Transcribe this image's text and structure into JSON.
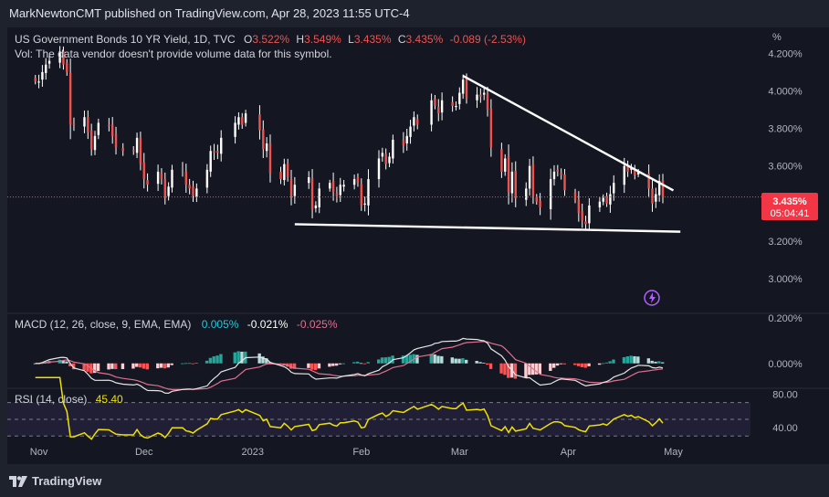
{
  "publisher_line": "MarkNewtonCMT published on TradingView.com, Apr 28, 2023 11:55 UTC-4",
  "brand": "TradingView",
  "legend": {
    "symbol": "US Government Bonds 10 YR Yield, 1D, TVC",
    "o_label": "O",
    "o_val": "3.522%",
    "h_label": "H",
    "h_val": "3.549%",
    "l_label": "L",
    "l_val": "3.435%",
    "c_label": "C",
    "c_val": "3.435%",
    "change": "-0.089 (-2.53%)",
    "vol_note": "Vol: The data vendor doesn't provide volume data for this symbol."
  },
  "price_badge": {
    "value": "3.435%",
    "countdown": "05:04:41"
  },
  "macd_legend": {
    "label": "MACD (12, 26, close, 9, EMA, EMA)",
    "v1": "0.005%",
    "v2": "-0.021%",
    "v3": "-0.025%"
  },
  "rsi_legend": {
    "label": "RSI (14, close)",
    "value": "45.40"
  },
  "colors": {
    "up": "#26a69a",
    "down": "#ef5350",
    "rsi": "#f0e100",
    "trend": "#ffffff",
    "macd_line": "#e6e6e6",
    "signal_line": "#e07090",
    "bg": "#141721"
  },
  "chart_data": [
    {
      "type": "candlestick",
      "title": "US Government Bonds 10 YR Yield, 1D, TVC",
      "unit": "%",
      "y_ticks": [
        "4.200%",
        "4.000%",
        "3.800%",
        "3.600%",
        "3.200%",
        "3.000%"
      ],
      "x_ticks": [
        "Nov",
        "Dec",
        "2023",
        "Feb",
        "Mar",
        "Apr",
        "May"
      ],
      "ylim": [
        2.82,
        4.27
      ],
      "last_price": 3.435,
      "dates": [
        "2022-10-31",
        "2022-11-01",
        "2022-11-02",
        "2022-11-03",
        "2022-11-04",
        "2022-11-07",
        "2022-11-08",
        "2022-11-09",
        "2022-11-10",
        "2022-11-11",
        "2022-11-14",
        "2022-11-15",
        "2022-11-16",
        "2022-11-17",
        "2022-11-18",
        "2022-11-21",
        "2022-11-22",
        "2022-11-23",
        "2022-11-25",
        "2022-11-28",
        "2022-11-29",
        "2022-11-30",
        "2022-12-01",
        "2022-12-02",
        "2022-12-05",
        "2022-12-06",
        "2022-12-07",
        "2022-12-08",
        "2022-12-09",
        "2022-12-12",
        "2022-12-13",
        "2022-12-14",
        "2022-12-15",
        "2022-12-16",
        "2022-12-19",
        "2022-12-20",
        "2022-12-21",
        "2022-12-22",
        "2022-12-23",
        "2022-12-27",
        "2022-12-28",
        "2022-12-29",
        "2022-12-30",
        "2023-01-03",
        "2023-01-04",
        "2023-01-05",
        "2023-01-06",
        "2023-01-09",
        "2023-01-10",
        "2023-01-11",
        "2023-01-12",
        "2023-01-13",
        "2023-01-17",
        "2023-01-18",
        "2023-01-19",
        "2023-01-20",
        "2023-01-23",
        "2023-01-24",
        "2023-01-25",
        "2023-01-26",
        "2023-01-27",
        "2023-01-30",
        "2023-01-31",
        "2023-02-01",
        "2023-02-02",
        "2023-02-03",
        "2023-02-06",
        "2023-02-07",
        "2023-02-08",
        "2023-02-09",
        "2023-02-10",
        "2023-02-13",
        "2023-02-14",
        "2023-02-15",
        "2023-02-16",
        "2023-02-17",
        "2023-02-21",
        "2023-02-22",
        "2023-02-23",
        "2023-02-24",
        "2023-02-27",
        "2023-02-28",
        "2023-03-01",
        "2023-03-02",
        "2023-03-03",
        "2023-03-06",
        "2023-03-07",
        "2023-03-08",
        "2023-03-09",
        "2023-03-10",
        "2023-03-13",
        "2023-03-14",
        "2023-03-15",
        "2023-03-16",
        "2023-03-17",
        "2023-03-20",
        "2023-03-21",
        "2023-03-22",
        "2023-03-23",
        "2023-03-24",
        "2023-03-27",
        "2023-03-28",
        "2023-03-29",
        "2023-03-30",
        "2023-03-31",
        "2023-04-03",
        "2023-04-04",
        "2023-04-05",
        "2023-04-06",
        "2023-04-07",
        "2023-04-10",
        "2023-04-11",
        "2023-04-12",
        "2023-04-13",
        "2023-04-14",
        "2023-04-17",
        "2023-04-18",
        "2023-04-19",
        "2023-04-20",
        "2023-04-21",
        "2023-04-24",
        "2023-04-25",
        "2023-04-26",
        "2023-04-27",
        "2023-04-28"
      ],
      "close": [
        4.05,
        4.05,
        4.1,
        4.14,
        4.16,
        4.21,
        4.14,
        4.1,
        3.82,
        3.82,
        3.86,
        3.78,
        3.69,
        3.76,
        3.83,
        3.82,
        3.76,
        3.7,
        3.68,
        3.68,
        3.75,
        3.61,
        3.53,
        3.5,
        3.57,
        3.53,
        3.43,
        3.49,
        3.58,
        3.58,
        3.5,
        3.48,
        3.44,
        3.48,
        3.58,
        3.68,
        3.67,
        3.67,
        3.75,
        3.83,
        3.86,
        3.82,
        3.88,
        3.79,
        3.69,
        3.72,
        3.56,
        3.53,
        3.61,
        3.54,
        3.44,
        3.5,
        3.54,
        3.37,
        3.39,
        3.48,
        3.51,
        3.46,
        3.44,
        3.5,
        3.5,
        3.53,
        3.51,
        3.39,
        3.4,
        3.53,
        3.64,
        3.67,
        3.61,
        3.65,
        3.74,
        3.71,
        3.76,
        3.81,
        3.86,
        3.82,
        3.95,
        3.92,
        3.88,
        3.95,
        3.92,
        3.92,
        3.99,
        4.06,
        3.96,
        3.98,
        3.97,
        3.99,
        3.9,
        3.7,
        3.57,
        3.64,
        3.46,
        3.57,
        3.43,
        3.48,
        3.6,
        3.44,
        3.41,
        3.38,
        3.53,
        3.57,
        3.57,
        3.55,
        3.47,
        3.42,
        3.35,
        3.31,
        3.29,
        3.39,
        3.41,
        3.43,
        3.4,
        3.45,
        3.51,
        3.6,
        3.57,
        3.59,
        3.55,
        3.57,
        3.48,
        3.4,
        3.45,
        3.52,
        3.435
      ]
    },
    {
      "type": "macd",
      "title": "MACD (12, 26, close, 9, EMA, EMA)",
      "y_ticks": [
        "0.200%",
        "0.000%"
      ],
      "ylim": [
        -0.105,
        0.215
      ],
      "macd": 0.005,
      "signal": -0.021,
      "histogram": -0.025
    },
    {
      "type": "line",
      "title": "RSI (14, close)",
      "y_ticks": [
        "80.00",
        "40.00"
      ],
      "ylim": [
        27,
        86
      ],
      "bands": [
        30,
        50,
        70
      ],
      "last_value": 45.4
    }
  ],
  "trendlines": [
    {
      "from": [
        "2023-03-02",
        4.08
      ],
      "to": [
        "2023-05-01",
        3.47
      ]
    },
    {
      "from": [
        "2023-01-13",
        3.29
      ],
      "to": [
        "2023-05-03",
        3.25
      ]
    }
  ]
}
